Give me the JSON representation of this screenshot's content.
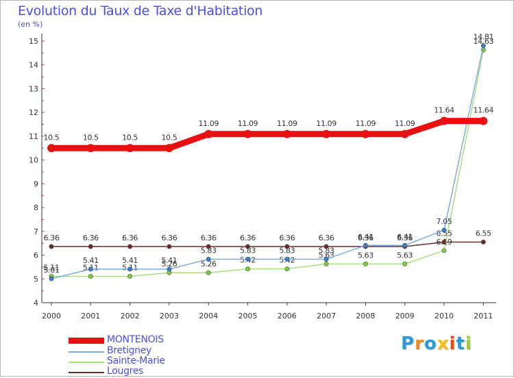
{
  "title": "Evolution du Taux de Taxe d'Habitation",
  "unit_label": "(en %)",
  "chart_data": {
    "type": "line",
    "title": "Evolution du Taux de Taxe d'Habitation",
    "ylabel": "(en %)",
    "xlabel": "",
    "ylim": [
      4,
      15
    ],
    "yticks": [
      "4",
      "5",
      "6",
      "7",
      "8",
      "9",
      "10",
      "11",
      "12",
      "13",
      "14",
      "15"
    ],
    "categories": [
      "2000",
      "2001",
      "2002",
      "2003",
      "2004",
      "2005",
      "2006",
      "2007",
      "2008",
      "2009",
      "2010",
      "2011"
    ],
    "series": [
      {
        "name": "Lougres",
        "color": "#6b2a2a",
        "dot_color": "#6b2a2a",
        "values": [
          6.36,
          6.36,
          6.36,
          6.36,
          6.36,
          6.36,
          6.36,
          6.36,
          6.36,
          6.36,
          6.55,
          6.55
        ],
        "labels": [
          "6.36",
          "6.36",
          "6.36",
          "6.36",
          "6.36",
          "6.36",
          "6.36",
          "6.36",
          "6.36",
          "6.36",
          "6.55",
          "6.55"
        ]
      },
      {
        "name": "Sainte-Marie",
        "color": "#a6e07a",
        "dot_color": "#7ccc3c",
        "values": [
          5.11,
          5.11,
          5.11,
          5.26,
          5.26,
          5.42,
          5.42,
          5.63,
          5.63,
          5.63,
          6.19,
          14.63
        ],
        "labels": [
          "5.11",
          "5.11",
          "5.11",
          "5.26",
          "5.26",
          "5.42",
          "5.42",
          "5.63",
          "5.63",
          "5.63",
          "6.19",
          "14.63"
        ]
      },
      {
        "name": "Bretigney",
        "color": "#7aaee0",
        "dot_color": "#3a7cc8",
        "values": [
          5.01,
          5.41,
          5.41,
          5.41,
          5.83,
          5.83,
          5.83,
          5.83,
          6.41,
          6.41,
          7.05,
          14.81
        ],
        "labels": [
          "5.01",
          "5.41",
          "5.41",
          "5.41",
          "5.83",
          "5.83",
          "5.83",
          "5.83",
          "6.41",
          "6.41",
          "7.05",
          "14.81"
        ]
      },
      {
        "name": "MONTENOIS",
        "color": "#e81010",
        "dot_color": "#e81010",
        "values": [
          10.5,
          10.5,
          10.5,
          10.5,
          11.09,
          11.09,
          11.09,
          11.09,
          11.09,
          11.09,
          11.64,
          11.64
        ],
        "labels": [
          "10.5",
          "10.5",
          "10.5",
          "10.5",
          "11.09",
          "11.09",
          "11.09",
          "11.09",
          "11.09",
          "11.09",
          "11.64",
          "11.64"
        ]
      }
    ]
  },
  "legend": [
    {
      "label": "MONTENOIS",
      "color": "#e81010",
      "thick": true
    },
    {
      "label": "Bretigney",
      "color": "#7aaee0",
      "thick": false
    },
    {
      "label": "Sainte-Marie",
      "color": "#a6e07a",
      "thick": false
    },
    {
      "label": "Lougres",
      "color": "#6b2a2a",
      "thick": false
    }
  ],
  "logo": {
    "text": "Proxiti",
    "letters": [
      "P",
      "r",
      "o",
      "x",
      "i",
      "t",
      "i"
    ],
    "colors": [
      "#2a9ad8",
      "#f08a18",
      "#2a9ad8",
      "#f0c018",
      "#e84a18",
      "#2a9ad8",
      "#9acd32"
    ]
  }
}
